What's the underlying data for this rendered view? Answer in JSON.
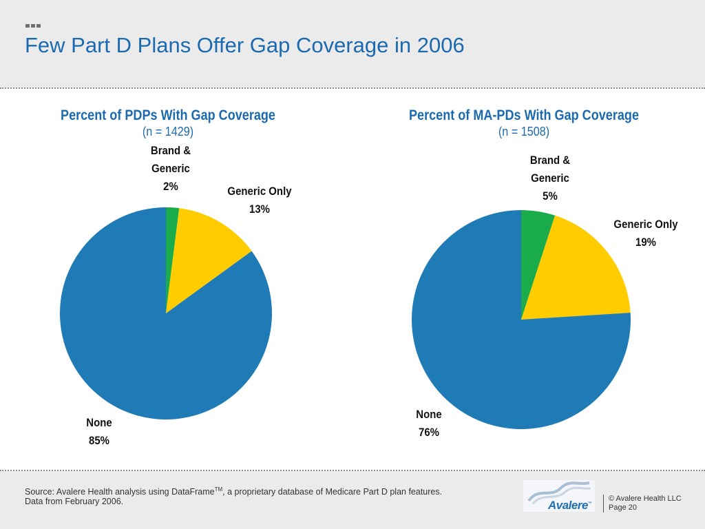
{
  "slide": {
    "title": "Few Part D Plans Offer Gap Coverage in 2006"
  },
  "charts": [
    {
      "title": "Percent of PDPs With Gap Coverage",
      "subtitle": "(n = 1429)",
      "labels": [
        {
          "lines": [
            "Brand &",
            "Generic",
            "2%"
          ]
        },
        {
          "lines": [
            "Generic Only",
            "13%"
          ]
        },
        {
          "lines": [
            "None",
            "85%"
          ]
        }
      ]
    },
    {
      "title": "Percent of MA-PDs With Gap Coverage",
      "subtitle": "(n = 1508)",
      "labels": [
        {
          "lines": [
            "Brand &",
            "Generic",
            "5%"
          ]
        },
        {
          "lines": [
            "Generic Only",
            "19%"
          ]
        },
        {
          "lines": [
            "None",
            "76%"
          ]
        }
      ]
    }
  ],
  "chart_data": [
    {
      "type": "pie",
      "title": "Percent of PDPs With Gap Coverage",
      "subtitle": "(n = 1429)",
      "slices": [
        {
          "label": "Brand & Generic",
          "value": 2,
          "color": "#1aab4b"
        },
        {
          "label": "Generic Only",
          "value": 13,
          "color": "#ffcc00"
        },
        {
          "label": "None",
          "value": 85,
          "color": "#1f7bb6"
        }
      ]
    },
    {
      "type": "pie",
      "title": "Percent of MA-PDs With Gap Coverage",
      "subtitle": "(n = 1508)",
      "slices": [
        {
          "label": "Brand & Generic",
          "value": 5,
          "color": "#1aab4b"
        },
        {
          "label": "Generic Only",
          "value": 19,
          "color": "#ffcc00"
        },
        {
          "label": "None",
          "value": 76,
          "color": "#1f7bb6"
        }
      ]
    }
  ],
  "footer": {
    "source_line1_pre": "Source:  Avalere Health analysis using DataFrame",
    "source_tm": "TM",
    "source_line1_post": ", a proprietary database of Medicare Part D plan features.",
    "source_line2": "Data from February 2006.",
    "logo_text": "Avalere",
    "logo_tm": "™",
    "copyright": "© Avalere Health LLC",
    "page": "Page 20"
  },
  "colors": {
    "brand_blue": "#1b6ab0",
    "header_bg": "#ebebeb"
  }
}
